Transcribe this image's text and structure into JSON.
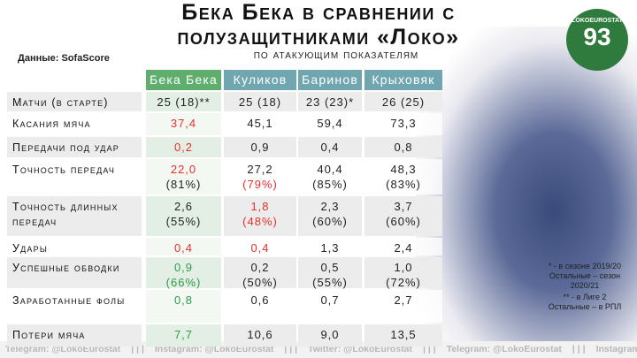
{
  "header": {
    "title_lines": [
      "Бека Бека в сравнении с",
      "полузащитниками «Локо»"
    ],
    "subtitle": "по атакующим показателям",
    "source": "Данные: SofaScore"
  },
  "logo": {
    "name": "LOKOEUROSTAT",
    "number": "93"
  },
  "table": {
    "columns": [
      "Бека Бека",
      "Куликов",
      "Баринов",
      "Крыховяк"
    ],
    "rows": [
      {
        "label": "Матчи (в старте)",
        "cells": [
          [
            {
              "text": "25 (18)**"
            }
          ],
          [
            {
              "text": "25 (18)"
            }
          ],
          [
            {
              "text": "23 (23)*"
            }
          ],
          [
            {
              "text": "26 (25)"
            }
          ]
        ]
      },
      {
        "label": "Касания мяча",
        "cells": [
          [
            {
              "text": "37,4",
              "color": "#e5302d"
            }
          ],
          [
            {
              "text": "45,1"
            }
          ],
          [
            {
              "text": "59,4"
            }
          ],
          [
            {
              "text": "73,3"
            }
          ]
        ]
      },
      {
        "label": "Передачи под удар",
        "cells": [
          [
            {
              "text": "0,2",
              "color": "#e5302d"
            }
          ],
          [
            {
              "text": "0,9"
            }
          ],
          [
            {
              "text": "0,4"
            }
          ],
          [
            {
              "text": "0,8"
            }
          ]
        ]
      },
      {
        "label": "Точность передач",
        "cells": [
          [
            {
              "text": "22,0",
              "color": "#e5302d"
            },
            {
              "text": "(81%)"
            }
          ],
          [
            {
              "text": "27,2"
            },
            {
              "text": "(79%)",
              "color": "#e5302d"
            }
          ],
          [
            {
              "text": "40,4"
            },
            {
              "text": "(85%)"
            }
          ],
          [
            {
              "text": "48,3"
            },
            {
              "text": "(83%)"
            }
          ]
        ]
      },
      {
        "label": "Точность длинных передач",
        "cells": [
          [
            {
              "text": "2,6"
            },
            {
              "text": "(55%)"
            }
          ],
          [
            {
              "text": "1,8",
              "color": "#e5302d"
            },
            {
              "text": "(48%)",
              "color": "#e5302d"
            }
          ],
          [
            {
              "text": "2,3"
            },
            {
              "text": "(60%)"
            }
          ],
          [
            {
              "text": "3,7"
            },
            {
              "text": "(60%)"
            }
          ]
        ]
      },
      {
        "label": "Удары",
        "cells": [
          [
            {
              "text": "0,4",
              "color": "#e5302d"
            }
          ],
          [
            {
              "text": "0,4",
              "color": "#e5302d"
            }
          ],
          [
            {
              "text": "1,3"
            }
          ],
          [
            {
              "text": "2,4"
            }
          ]
        ]
      },
      {
        "label": "Успешные обводки",
        "cells": [
          [
            {
              "text": "0,9",
              "color": "#2a9d4a"
            },
            {
              "text": "(66%)",
              "color": "#2a9d4a"
            }
          ],
          [
            {
              "text": "0,2"
            },
            {
              "text": "(50%)"
            }
          ],
          [
            {
              "text": "0,5"
            },
            {
              "text": "(55%)"
            }
          ],
          [
            {
              "text": "1,0"
            },
            {
              "text": "(72%)"
            }
          ]
        ]
      },
      {
        "label": "Заработанные фолы",
        "cells": [
          [
            {
              "text": "0,8",
              "color": "#2a9d4a"
            }
          ],
          [
            {
              "text": "0,6"
            }
          ],
          [
            {
              "text": "0,7"
            }
          ],
          [
            {
              "text": "2,7"
            }
          ]
        ]
      },
      {
        "label": "Потери мяча",
        "cells": [
          [
            {
              "text": "7,7",
              "color": "#2a9d4a"
            }
          ],
          [
            {
              "text": "10,6"
            }
          ],
          [
            {
              "text": "9,0"
            }
          ],
          [
            {
              "text": "13,5"
            }
          ]
        ]
      }
    ]
  },
  "notes": [
    "* - в сезоне 2019/20 Остальные – сезон 2020/21",
    "** - в Лиге 2 Остальные – в РПЛ"
  ],
  "footer": {
    "items": [
      "Telegram: @LokoEurostat",
      "Instagram: @LokoEurostat",
      "Twitter: @LokoEurostat",
      "Telegram: @LokoEurostat",
      "Instagram: @LokoEuro"
    ],
    "separator": "| | |"
  }
}
